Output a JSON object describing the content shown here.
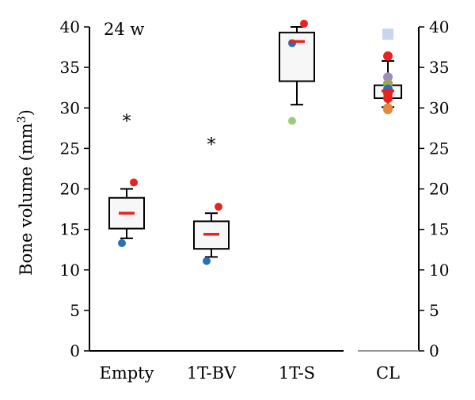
{
  "chart_data": {
    "type": "box",
    "annotation": "24 w",
    "ylabel": "Bone volume (mm",
    "ylabel_superscript": "3",
    "ylabel_close": ")",
    "ylim": [
      0,
      40
    ],
    "yticks": [
      "0",
      "5",
      "10",
      "15",
      "20",
      "25",
      "30",
      "35",
      "40"
    ],
    "ytick_values": [
      0,
      5,
      10,
      15,
      20,
      25,
      30,
      35,
      40
    ],
    "colors": {
      "median": "#e8221f",
      "high_point": "#e8221f",
      "low_point": "#2b6fb6",
      "outlier_green": "#9acc7a",
      "cl_square": "#c7d6ee",
      "cl_purple": "#9b8bbf",
      "cl_orange": "#e08a3c",
      "cl_olive": "#9aa55a",
      "divider": "#9a9a9a"
    },
    "groups": [
      {
        "category": "Empty",
        "q1": 15.1,
        "q3": 18.9,
        "median": 17.0,
        "whisker_low": 13.9,
        "whisker_high": 20.0,
        "significance": "*",
        "significance_y": 28.8,
        "points": [
          {
            "y": 20.8,
            "color": "#e8221f"
          },
          {
            "y": 13.3,
            "color": "#2b6fb6"
          }
        ]
      },
      {
        "category": "1T-BV",
        "q1": 12.6,
        "q3": 16.0,
        "median": 14.4,
        "whisker_low": 11.6,
        "whisker_high": 17.0,
        "significance": "*",
        "significance_y": 25.9,
        "points": [
          {
            "y": 17.8,
            "color": "#e8221f"
          },
          {
            "y": 11.1,
            "color": "#2b6fb6"
          }
        ]
      },
      {
        "category": "1T-S",
        "q1": 33.3,
        "q3": 39.3,
        "median": 38.2,
        "whisker_low": 30.4,
        "whisker_high": 40.0,
        "significance": "",
        "points": [
          {
            "y": 40.4,
            "color": "#e8221f"
          },
          {
            "y": 38.0,
            "color": "#2b6fb6"
          },
          {
            "y": 28.4,
            "color": "#9acc7a"
          }
        ]
      },
      {
        "category": "CL",
        "q1": 31.2,
        "q3": 32.8,
        "median": 32.1,
        "whisker_low": 30.1,
        "whisker_high": 35.8,
        "significance": "",
        "points": [
          {
            "y": 39.1,
            "color": "#c7d6ee",
            "shape": "square"
          },
          {
            "y": 36.4,
            "color": "#e8221f"
          },
          {
            "y": 33.8,
            "color": "#9b8bbf"
          },
          {
            "y": 33.0,
            "color": "#9aa55a"
          },
          {
            "y": 32.3,
            "color": "#2b6fb6"
          },
          {
            "y": 31.8,
            "color": "#e8221f"
          },
          {
            "y": 31.2,
            "color": "#e8221f"
          },
          {
            "y": 30.0,
            "color": "#e08a3c"
          },
          {
            "y": 29.8,
            "color": "#e08a3c"
          }
        ]
      }
    ]
  }
}
